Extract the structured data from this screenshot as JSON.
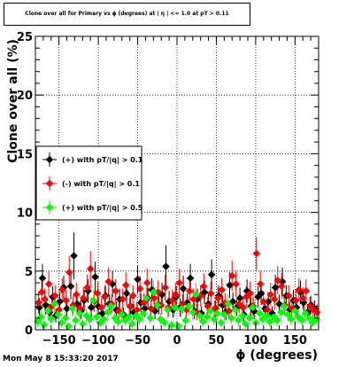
{
  "title": "Clone  over all for Primary vs ϕ (degrees) at | η | <= 1.0 at pT > 0.11",
  "datestamp": "Mon May  8 15:33:20 2017",
  "chart_data": {
    "type": "scatter",
    "title": "Clone  over all for Primary vs ϕ (degrees) at | η | <= 1.0 at pT > 0.11",
    "xlabel": "ϕ (degrees)",
    "ylabel": "Clone  over all (%)",
    "xlim": [
      -180,
      180
    ],
    "ylim": [
      0,
      25
    ],
    "xticks": [
      -150,
      -100,
      -50,
      0,
      50,
      100,
      150
    ],
    "yticks": [
      0,
      5,
      10,
      15,
      20,
      25
    ],
    "grid": true,
    "legend_position": "left",
    "series": [
      {
        "name": "(+) with pT/|q| > 0.1",
        "color": "#000000",
        "marker": "diamond",
        "points": [
          [
            -175,
            1.9,
            0.8
          ],
          [
            -171,
            4.4,
            1.2
          ],
          [
            -167,
            2.1,
            0.8
          ],
          [
            -162,
            1.5,
            0.7
          ],
          [
            -158,
            2.8,
            0.9
          ],
          [
            -154,
            1.2,
            0.6
          ],
          [
            -149,
            2.4,
            0.8
          ],
          [
            -144,
            3.6,
            1.0
          ],
          [
            -140,
            1.8,
            0.7
          ],
          [
            -135,
            3.7,
            1.1
          ],
          [
            -131,
            6.3,
            2.0
          ],
          [
            -127,
            2.2,
            0.8
          ],
          [
            -122,
            1.6,
            0.7
          ],
          [
            -118,
            2.5,
            0.9
          ],
          [
            -113,
            3.3,
            1.0
          ],
          [
            -109,
            1.9,
            0.8
          ],
          [
            -104,
            4.5,
            1.3
          ],
          [
            -100,
            2.0,
            0.8
          ],
          [
            -95,
            1.4,
            0.6
          ],
          [
            -91,
            2.9,
            0.9
          ],
          [
            -86,
            2.2,
            0.8
          ],
          [
            -82,
            3.9,
            1.1
          ],
          [
            -77,
            1.7,
            0.7
          ],
          [
            -73,
            2.6,
            0.9
          ],
          [
            -68,
            1.3,
            0.6
          ],
          [
            -64,
            3.1,
            1.0
          ],
          [
            -59,
            2.0,
            0.8
          ],
          [
            -55,
            1.5,
            0.7
          ],
          [
            -50,
            4.3,
            1.2
          ],
          [
            -46,
            2.3,
            0.8
          ],
          [
            -41,
            1.8,
            0.7
          ],
          [
            -37,
            2.7,
            0.9
          ],
          [
            -32,
            3.4,
            1.0
          ],
          [
            -28,
            1.6,
            0.7
          ],
          [
            -23,
            2.1,
            0.8
          ],
          [
            -19,
            3.0,
            1.0
          ],
          [
            -14,
            5.4,
            1.8
          ],
          [
            -10,
            2.4,
            0.9
          ],
          [
            -5,
            1.7,
            0.7
          ],
          [
            -1,
            2.8,
            0.9
          ],
          [
            4,
            1.9,
            0.8
          ],
          [
            8,
            3.5,
            1.1
          ],
          [
            13,
            2.3,
            0.8
          ],
          [
            17,
            4.4,
            1.2
          ],
          [
            22,
            1.6,
            0.7
          ],
          [
            26,
            2.6,
            0.9
          ],
          [
            31,
            1.4,
            0.6
          ],
          [
            35,
            3.2,
            1.0
          ],
          [
            40,
            2.2,
            0.8
          ],
          [
            44,
            4.7,
            1.3
          ],
          [
            49,
            1.8,
            0.7
          ],
          [
            53,
            2.9,
            0.9
          ],
          [
            58,
            2.1,
            0.8
          ],
          [
            62,
            1.5,
            0.7
          ],
          [
            67,
            3.8,
            1.1
          ],
          [
            71,
            2.4,
            0.8
          ],
          [
            76,
            1.9,
            0.7
          ],
          [
            80,
            2.7,
            0.9
          ],
          [
            85,
            1.3,
            0.6
          ],
          [
            89,
            3.3,
            1.0
          ],
          [
            94,
            2.0,
            0.8
          ],
          [
            98,
            1.6,
            0.7
          ],
          [
            103,
            2.8,
            0.9
          ],
          [
            107,
            3.1,
            1.0
          ],
          [
            112,
            1.8,
            0.7
          ],
          [
            116,
            2.4,
            0.8
          ],
          [
            121,
            1.4,
            0.6
          ],
          [
            125,
            3.6,
            1.1
          ],
          [
            130,
            2.2,
            0.8
          ],
          [
            134,
            4.1,
            1.2
          ],
          [
            139,
            2.9,
            0.9
          ],
          [
            143,
            1.7,
            0.7
          ],
          [
            148,
            2.5,
            0.9
          ],
          [
            152,
            1.9,
            0.7
          ],
          [
            157,
            3.2,
            1.0
          ],
          [
            161,
            2.3,
            0.8
          ],
          [
            166,
            1.5,
            0.7
          ],
          [
            170,
            2.1,
            0.8
          ],
          [
            175,
            1.8,
            0.7
          ]
        ]
      },
      {
        "name": "(-) with pT/|q| > 0.1",
        "color": "#ff0000",
        "marker": "diamond",
        "points": [
          [
            -176,
            2.3,
            0.9
          ],
          [
            -172,
            3.2,
            1.0
          ],
          [
            -168,
            2.6,
            0.9
          ],
          [
            -163,
            3.9,
            1.1
          ],
          [
            -159,
            2.0,
            0.8
          ],
          [
            -155,
            2.9,
            0.9
          ],
          [
            -150,
            1.7,
            0.7
          ],
          [
            -146,
            3.4,
            1.0
          ],
          [
            -141,
            2.5,
            0.9
          ],
          [
            -137,
            4.9,
            1.4
          ],
          [
            -132,
            2.1,
            0.8
          ],
          [
            -128,
            3.0,
            1.0
          ],
          [
            -123,
            1.8,
            0.7
          ],
          [
            -119,
            2.7,
            0.9
          ],
          [
            -114,
            3.6,
            1.1
          ],
          [
            -110,
            5.2,
            1.5
          ],
          [
            -105,
            2.4,
            0.9
          ],
          [
            -101,
            3.1,
            1.0
          ],
          [
            -96,
            1.9,
            0.8
          ],
          [
            -92,
            2.8,
            0.9
          ],
          [
            -87,
            4.1,
            1.2
          ],
          [
            -83,
            2.2,
            0.8
          ],
          [
            -78,
            3.3,
            1.0
          ],
          [
            -74,
            1.6,
            0.7
          ],
          [
            -69,
            2.6,
            0.9
          ],
          [
            -65,
            3.8,
            1.1
          ],
          [
            -60,
            2.0,
            0.8
          ],
          [
            -56,
            2.9,
            0.9
          ],
          [
            -51,
            1.7,
            0.7
          ],
          [
            -47,
            3.5,
            1.1
          ],
          [
            -42,
            2.3,
            0.8
          ],
          [
            -38,
            4.0,
            1.2
          ],
          [
            -33,
            1.8,
            0.7
          ],
          [
            -29,
            2.7,
            0.9
          ],
          [
            -24,
            3.2,
            1.0
          ],
          [
            -20,
            2.1,
            0.8
          ],
          [
            -15,
            3.6,
            1.1
          ],
          [
            -11,
            1.9,
            0.8
          ],
          [
            -6,
            2.5,
            0.9
          ],
          [
            -2,
            3.0,
            1.0
          ],
          [
            3,
            4.0,
            1.2
          ],
          [
            7,
            2.2,
            0.8
          ],
          [
            12,
            1.7,
            0.7
          ],
          [
            16,
            3.3,
            1.0
          ],
          [
            21,
            2.6,
            0.9
          ],
          [
            25,
            1.5,
            0.7
          ],
          [
            30,
            2.9,
            0.9
          ],
          [
            34,
            3.7,
            1.1
          ],
          [
            39,
            2.0,
            0.8
          ],
          [
            43,
            3.1,
            1.0
          ],
          [
            48,
            1.8,
            0.7
          ],
          [
            52,
            2.7,
            0.9
          ],
          [
            57,
            3.4,
            1.0
          ],
          [
            61,
            2.3,
            0.8
          ],
          [
            66,
            1.6,
            0.7
          ],
          [
            70,
            4.6,
            1.3
          ],
          [
            75,
            3.9,
            1.1
          ],
          [
            79,
            2.2,
            0.8
          ],
          [
            84,
            1.9,
            0.8
          ],
          [
            88,
            2.8,
            0.9
          ],
          [
            93,
            3.1,
            1.0
          ],
          [
            97,
            2.0,
            0.8
          ],
          [
            101,
            6.5,
            1.4
          ],
          [
            106,
            3.9,
            1.1
          ],
          [
            110,
            2.4,
            0.9
          ],
          [
            115,
            1.7,
            0.7
          ],
          [
            119,
            3.0,
            1.0
          ],
          [
            124,
            2.6,
            0.9
          ],
          [
            128,
            4.2,
            1.2
          ],
          [
            133,
            3.7,
            1.1
          ],
          [
            137,
            2.1,
            0.8
          ],
          [
            142,
            2.9,
            0.9
          ],
          [
            146,
            1.8,
            0.7
          ],
          [
            151,
            2.5,
            0.9
          ],
          [
            155,
            3.4,
            1.0
          ],
          [
            160,
            2.7,
            0.9
          ],
          [
            164,
            3.3,
            1.0
          ],
          [
            169,
            2.0,
            0.8
          ],
          [
            173,
            1.7,
            0.7
          ],
          [
            178,
            1.5,
            0.7
          ]
        ]
      },
      {
        "name": "(+) with pT/|q| > 0.5",
        "color": "#00ff00",
        "marker": "diamond",
        "points": [
          [
            -177,
            0.7,
            0.5
          ],
          [
            -173,
            1.1,
            0.6
          ],
          [
            -169,
            0.4,
            0.4
          ],
          [
            -164,
            1.6,
            0.7
          ],
          [
            -160,
            0.9,
            0.5
          ],
          [
            -156,
            2.2,
            0.8
          ],
          [
            -151,
            1.3,
            0.6
          ],
          [
            -147,
            0.6,
            0.4
          ],
          [
            -142,
            1.0,
            0.5
          ],
          [
            -138,
            0.3,
            0.3
          ],
          [
            -133,
            1.8,
            0.7
          ],
          [
            -129,
            0.8,
            0.5
          ],
          [
            -124,
            1.4,
            0.6
          ],
          [
            -120,
            0.5,
            0.4
          ],
          [
            -115,
            1.2,
            0.6
          ],
          [
            -111,
            0.9,
            0.5
          ],
          [
            -106,
            2.5,
            0.9
          ],
          [
            -102,
            1.1,
            0.6
          ],
          [
            -97,
            0.6,
            0.4
          ],
          [
            -93,
            0.9,
            0.5
          ],
          [
            -88,
            1.5,
            0.7
          ],
          [
            -84,
            2.0,
            0.8
          ],
          [
            -79,
            1.0,
            0.5
          ],
          [
            -75,
            0.7,
            0.5
          ],
          [
            -70,
            1.3,
            0.6
          ],
          [
            -66,
            0.8,
            0.5
          ],
          [
            -61,
            1.1,
            0.6
          ],
          [
            -57,
            0.5,
            0.4
          ],
          [
            -52,
            1.2,
            0.6
          ],
          [
            -48,
            0.9,
            0.5
          ],
          [
            -43,
            1.4,
            0.6
          ],
          [
            -39,
            2.7,
            0.9
          ],
          [
            -34,
            1.0,
            0.5
          ],
          [
            -30,
            3.2,
            1.0
          ],
          [
            -25,
            2.1,
            0.8
          ],
          [
            -21,
            0.9,
            0.5
          ],
          [
            -16,
            0.6,
            0.4
          ],
          [
            -12,
            1.7,
            0.7
          ],
          [
            -7,
            0.4,
            0.4
          ],
          [
            -3,
            1.9,
            0.8
          ],
          [
            2,
            0.3,
            0.3
          ],
          [
            6,
            1.8,
            0.7
          ],
          [
            11,
            0.8,
            0.5
          ],
          [
            15,
            2.0,
            0.8
          ],
          [
            20,
            1.5,
            0.7
          ],
          [
            24,
            3.0,
            1.0
          ],
          [
            29,
            1.2,
            0.6
          ],
          [
            33,
            0.7,
            0.5
          ],
          [
            38,
            1.1,
            0.6
          ],
          [
            42,
            1.6,
            0.7
          ],
          [
            47,
            0.9,
            0.5
          ],
          [
            51,
            1.4,
            0.6
          ],
          [
            56,
            0.6,
            0.4
          ],
          [
            60,
            1.3,
            0.6
          ],
          [
            65,
            2.2,
            0.8
          ],
          [
            69,
            1.0,
            0.5
          ],
          [
            74,
            1.7,
            0.7
          ],
          [
            78,
            0.8,
            0.5
          ],
          [
            83,
            1.2,
            0.6
          ],
          [
            87,
            0.5,
            0.4
          ],
          [
            92,
            1.0,
            0.5
          ],
          [
            96,
            1.9,
            0.8
          ],
          [
            100,
            0.6,
            0.4
          ],
          [
            105,
            1.4,
            0.6
          ],
          [
            109,
            0.9,
            0.5
          ],
          [
            114,
            1.2,
            0.6
          ],
          [
            118,
            0.7,
            0.5
          ],
          [
            123,
            1.1,
            0.6
          ],
          [
            127,
            0.8,
            0.5
          ],
          [
            132,
            1.5,
            0.7
          ],
          [
            136,
            2.0,
            0.8
          ],
          [
            141,
            1.3,
            0.6
          ],
          [
            145,
            0.9,
            0.5
          ],
          [
            150,
            1.6,
            0.7
          ],
          [
            154,
            1.1,
            0.6
          ],
          [
            159,
            0.8,
            0.5
          ],
          [
            163,
            1.4,
            0.6
          ],
          [
            168,
            1.0,
            0.5
          ],
          [
            172,
            0.6,
            0.4
          ],
          [
            177,
            0.9,
            0.5
          ]
        ]
      }
    ]
  }
}
